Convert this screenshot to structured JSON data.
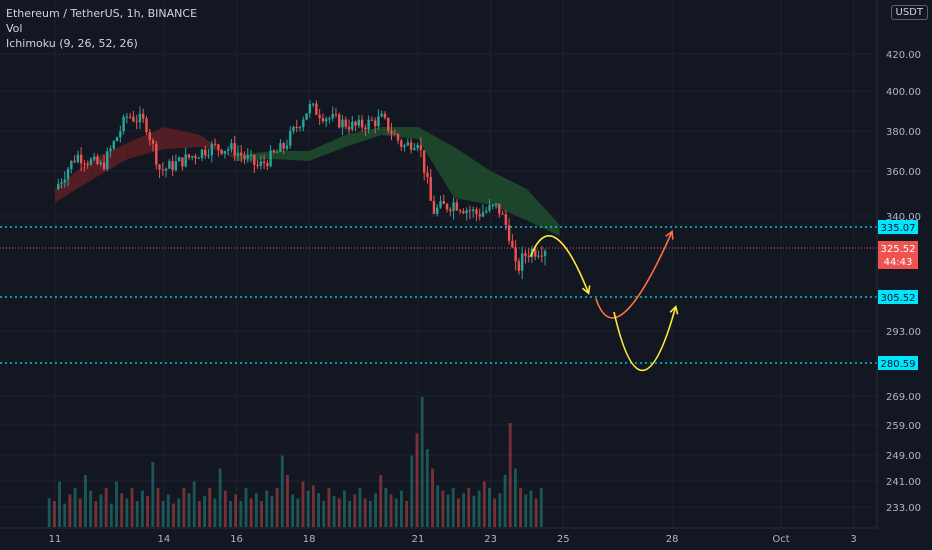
{
  "legend": {
    "symbol": "Ethereum / TetherUS, 1h, BINANCE",
    "vol": "Vol",
    "ichimoku": "Ichimoku (9, 26, 52, 26)"
  },
  "currency_button": "USDT",
  "colors": {
    "background": "#131722",
    "up": "#26a69a",
    "down": "#ef5350",
    "cloud_bull": "#1e4a2c",
    "cloud_bear": "#5a1e24",
    "level_line": "#00e5ff",
    "annotation_yellow": "#ffeb3b",
    "annotation_red": "#ff7043"
  },
  "chart_data": {
    "type": "candlestick",
    "price_axis_ticks": [
      "420.00",
      "400.00",
      "380.00",
      "360.00",
      "340.00",
      "293.00",
      "269.00",
      "259.00",
      "249.00",
      "241.00",
      "233.00"
    ],
    "time_axis_ticks": [
      "11",
      "14",
      "16",
      "18",
      "21",
      "23",
      "25",
      "28",
      "Oct",
      "3"
    ],
    "levels": [
      {
        "label": "335.07",
        "value": 335.07
      },
      {
        "label": "305.52",
        "value": 305.52
      },
      {
        "label": "280.59",
        "value": 280.59
      }
    ],
    "last_price": {
      "label": "325.52",
      "countdown": "44:43",
      "value": 325.52
    },
    "price_path": [
      {
        "x": 11,
        "y": 352
      },
      {
        "x": 11.6,
        "y": 368
      },
      {
        "x": 12.3,
        "y": 362
      },
      {
        "x": 13,
        "y": 388
      },
      {
        "x": 13.5,
        "y": 384
      },
      {
        "x": 13.9,
        "y": 360
      },
      {
        "x": 14.6,
        "y": 366
      },
      {
        "x": 15.3,
        "y": 372
      },
      {
        "x": 15.9,
        "y": 371
      },
      {
        "x": 16.6,
        "y": 362
      },
      {
        "x": 17.3,
        "y": 372
      },
      {
        "x": 18,
        "y": 392
      },
      {
        "x": 18.6,
        "y": 386
      },
      {
        "x": 19.3,
        "y": 382
      },
      {
        "x": 20,
        "y": 386
      },
      {
        "x": 20.6,
        "y": 372
      },
      {
        "x": 21,
        "y": 376
      },
      {
        "x": 21.4,
        "y": 342
      },
      {
        "x": 22,
        "y": 346
      },
      {
        "x": 22.6,
        "y": 341
      },
      {
        "x": 23.2,
        "y": 344
      },
      {
        "x": 23.5,
        "y": 333
      },
      {
        "x": 23.7,
        "y": 316
      },
      {
        "x": 24,
        "y": 324
      },
      {
        "x": 24.5,
        "y": 326
      }
    ],
    "cloud": [
      {
        "x": 11,
        "a": 346,
        "b": 352
      },
      {
        "x": 12,
        "a": 356,
        "b": 366
      },
      {
        "x": 13,
        "a": 366,
        "b": 374
      },
      {
        "x": 14,
        "a": 371,
        "b": 382
      },
      {
        "x": 15,
        "a": 372,
        "b": 378
      },
      {
        "x": 16,
        "a": 368,
        "b": 365
      },
      {
        "x": 17,
        "a": 370,
        "b": 366
      },
      {
        "x": 18,
        "a": 370,
        "b": 365
      },
      {
        "x": 19,
        "a": 378,
        "b": 372
      },
      {
        "x": 20,
        "a": 382,
        "b": 378
      },
      {
        "x": 21,
        "a": 382,
        "b": 376
      },
      {
        "x": 22,
        "a": 372,
        "b": 348
      },
      {
        "x": 23,
        "a": 360,
        "b": 345
      },
      {
        "x": 24,
        "a": 352,
        "b": 338
      },
      {
        "x": 24.9,
        "a": 336,
        "b": 331
      }
    ],
    "volume": {
      "start": 10.8,
      "end": 24.5,
      "max": 1.0,
      "values": [
        0.22,
        0.2,
        0.35,
        0.18,
        0.25,
        0.3,
        0.22,
        0.4,
        0.28,
        0.2,
        0.25,
        0.3,
        0.18,
        0.35,
        0.26,
        0.22,
        0.3,
        0.2,
        0.28,
        0.24,
        0.5,
        0.3,
        0.2,
        0.25,
        0.18,
        0.22,
        0.3,
        0.26,
        0.35,
        0.2,
        0.24,
        0.3,
        0.22,
        0.45,
        0.28,
        0.2,
        0.25,
        0.2,
        0.3,
        0.22,
        0.26,
        0.2,
        0.28,
        0.24,
        0.3,
        0.55,
        0.4,
        0.25,
        0.22,
        0.35,
        0.28,
        0.32,
        0.26,
        0.2,
        0.3,
        0.24,
        0.22,
        0.28,
        0.2,
        0.25,
        0.3,
        0.22,
        0.2,
        0.26,
        0.4,
        0.3,
        0.25,
        0.22,
        0.28,
        0.2,
        0.55,
        0.72,
        1.0,
        0.6,
        0.45,
        0.32,
        0.28,
        0.25,
        0.3,
        0.22,
        0.26,
        0.3,
        0.24,
        0.28,
        0.35,
        0.3,
        0.22,
        0.26,
        0.4,
        0.8,
        0.45,
        0.3,
        0.25,
        0.28,
        0.22,
        0.3
      ]
    },
    "annotations": [
      {
        "color": "yellow",
        "path": [
          {
            "x": 24.1,
            "y": 322
          },
          {
            "x": 24.8,
            "y": 330
          },
          {
            "x": 25.7,
            "y": 307
          }
        ]
      },
      {
        "color": "red",
        "path": [
          {
            "x": 25.9,
            "y": 305
          },
          {
            "x": 26.7,
            "y": 300
          },
          {
            "x": 28,
            "y": 333
          }
        ]
      },
      {
        "color": "yellow",
        "path": [
          {
            "x": 26.4,
            "y": 300
          },
          {
            "x": 27.2,
            "y": 278
          },
          {
            "x": 28.1,
            "y": 302
          }
        ]
      }
    ]
  }
}
